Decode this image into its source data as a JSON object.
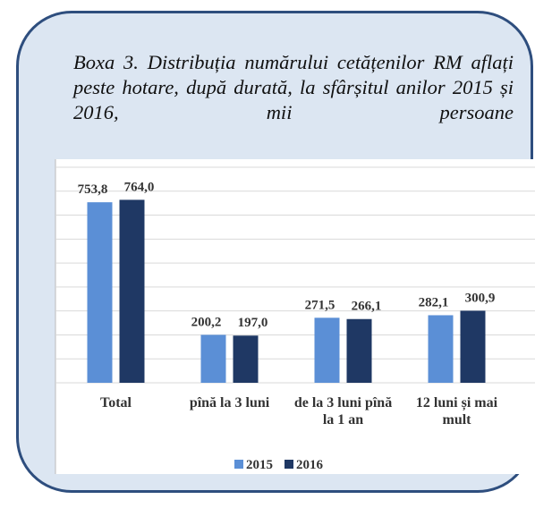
{
  "chart_data": {
    "type": "bar",
    "title": "Boxa 3. Distribuția numărului cetățenilor RM aflați peste hotare, după durată, la sfârșitul anilor 2015 și 2016, mii persoane",
    "categories": [
      "Total",
      "pînă la 3 luni",
      "de la 3 luni pînă la 1 an",
      "12 luni și mai mult"
    ],
    "series": [
      {
        "name": "2015",
        "color": "#5b8fd6",
        "values": [
          753.8,
          200.2,
          271.5,
          282.1
        ],
        "value_labels": [
          "753,8",
          "200,2",
          "271,5",
          "282,1"
        ]
      },
      {
        "name": "2016",
        "color": "#1f3864",
        "values": [
          764.0,
          197.0,
          266.1,
          300.9
        ],
        "value_labels": [
          "764,0",
          "197,0",
          "266,1",
          "300,9"
        ]
      }
    ],
    "ylim": [
      0,
      900
    ],
    "yticks": [
      0,
      100,
      200,
      300,
      400,
      500,
      600,
      700,
      800,
      900
    ],
    "grid": true,
    "legend": "bottom"
  }
}
